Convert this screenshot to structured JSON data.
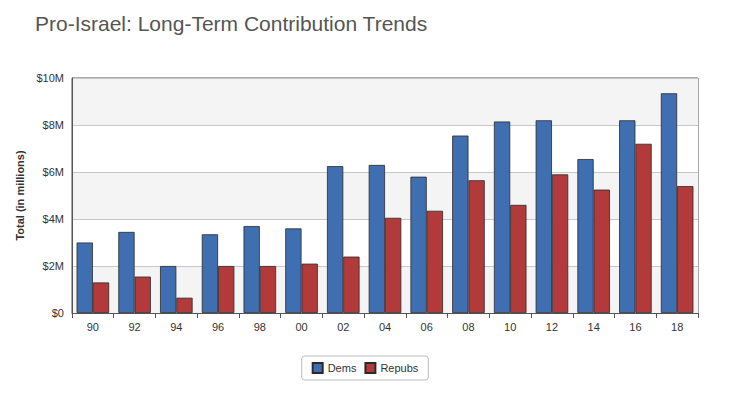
{
  "chart_data": {
    "type": "bar",
    "title": "Pro-Israel: Long-Term Contribution Trends",
    "y_label": "Total (in millions)",
    "categories": [
      "90",
      "92",
      "94",
      "96",
      "98",
      "00",
      "02",
      "04",
      "06",
      "08",
      "10",
      "12",
      "14",
      "16",
      "18"
    ],
    "series": [
      {
        "name": "Dems",
        "color": "#3f6fb1",
        "values": [
          3.0,
          3.45,
          2.0,
          3.35,
          3.7,
          3.6,
          6.25,
          6.3,
          5.8,
          7.55,
          8.15,
          8.2,
          6.55,
          8.2,
          9.35
        ]
      },
      {
        "name": "Repubs",
        "color": "#b33a3a",
        "values": [
          1.3,
          1.55,
          0.65,
          2.0,
          2.0,
          2.1,
          2.4,
          4.05,
          4.35,
          5.65,
          4.6,
          5.9,
          5.25,
          7.2,
          5.4
        ]
      }
    ],
    "ylim": [
      0,
      10
    ],
    "yticks": [
      {
        "value": 0,
        "label": "$0"
      },
      {
        "value": 2,
        "label": "$2M"
      },
      {
        "value": 4,
        "label": "$4M"
      },
      {
        "value": 6,
        "label": "$6M"
      },
      {
        "value": 8,
        "label": "$8M"
      },
      {
        "value": 10,
        "label": "$10M"
      }
    ],
    "grid": true,
    "legend": "bottom"
  }
}
